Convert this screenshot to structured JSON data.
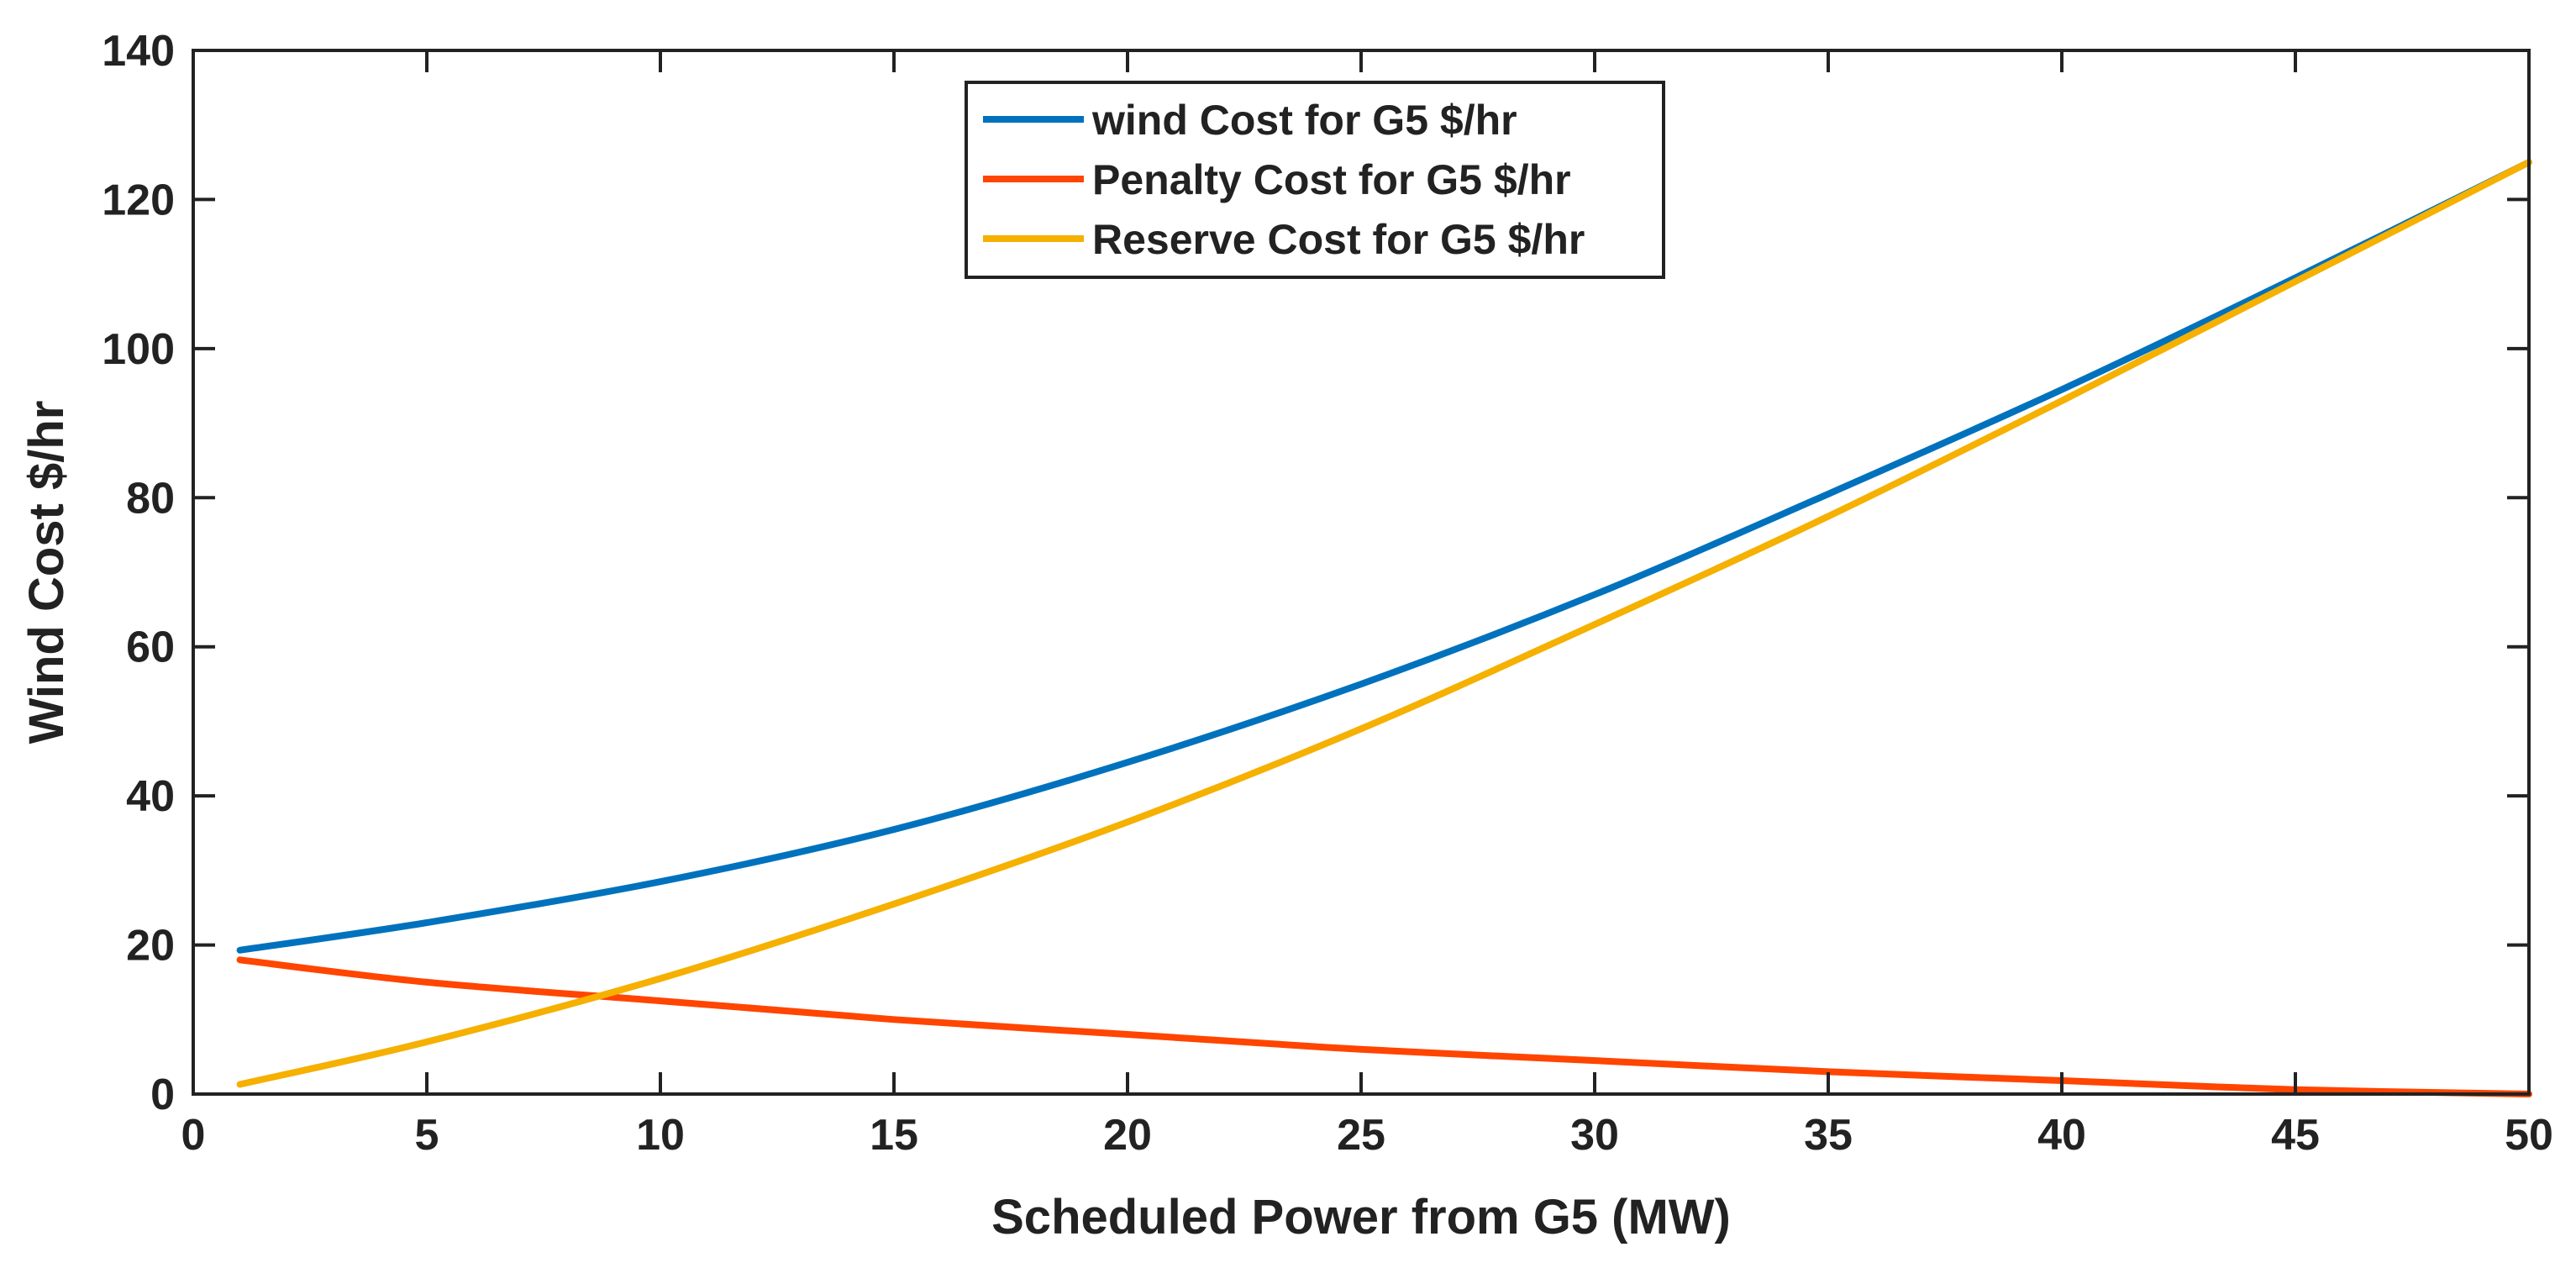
{
  "chart_data": {
    "type": "line",
    "title": "",
    "xlabel": "Scheduled Power from G5 (MW)",
    "ylabel": "Wind Cost $/hr",
    "xlim": [
      0,
      50
    ],
    "ylim": [
      0,
      140
    ],
    "xticks": [
      0,
      5,
      10,
      15,
      20,
      25,
      30,
      35,
      40,
      45,
      50
    ],
    "yticks": [
      0,
      20,
      40,
      60,
      80,
      100,
      120,
      140
    ],
    "grid": false,
    "legend_position": "top-center",
    "x": [
      1,
      5,
      10,
      15,
      20,
      25,
      30,
      35,
      40,
      45,
      50
    ],
    "series": [
      {
        "name": "wind Cost for G5 $/hr",
        "color": "#0072BD",
        "values": [
          19.3,
          23,
          28.5,
          35.5,
          44.5,
          55,
          67,
          80.5,
          94.5,
          109.5,
          125
        ]
      },
      {
        "name": "Penalty Cost for G5 $/hr",
        "color": "#FF4500",
        "values": [
          18,
          15,
          12.5,
          10,
          8,
          6,
          4.5,
          3,
          1.8,
          0.6,
          0
        ]
      },
      {
        "name": "Reserve Cost for G5 $/hr",
        "color": "#F5B000",
        "values": [
          1.3,
          7,
          15.5,
          25.5,
          36.5,
          49,
          63,
          77.5,
          93,
          109,
          125
        ]
      }
    ]
  }
}
